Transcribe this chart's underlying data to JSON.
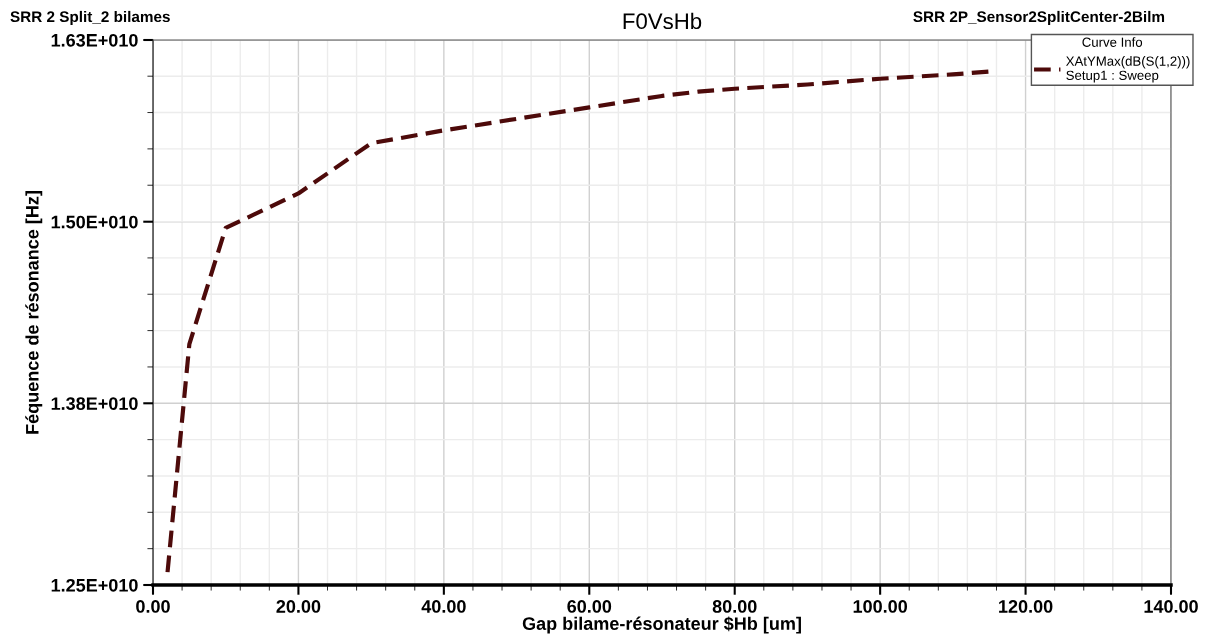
{
  "chart_data": {
    "type": "line",
    "title": "F0VsHb",
    "annotations": [
      "SRR 2 Split_2 bilames",
      "SRR 2P_Sensor2SplitCenter-2Bilm"
    ],
    "xlabel": "Gap bilame-résonateur $Hb [um]",
    "ylabel": "Féquence de résonance [Hz]",
    "legend_title": "Curve Info",
    "x": [
      2,
      5,
      10,
      20,
      30,
      40,
      50,
      60,
      70,
      75,
      80,
      90,
      100,
      110,
      115
    ],
    "series": [
      {
        "name": "XAtYMax(dB(S(1,2)))\nSetup1 : Sweep",
        "color": "#4d0a0a",
        "values": [
          12590000000.0,
          14180000000.0,
          14990000000.0,
          15230000000.0,
          15580000000.0,
          15670000000.0,
          15750000000.0,
          15830000000.0,
          15910000000.0,
          15940000000.0,
          15960000000.0,
          15990000000.0,
          16030000000.0,
          16060000000.0,
          16080000000.0
        ]
      }
    ],
    "xlim": [
      0,
      140
    ],
    "xticks": [
      {
        "value": 0,
        "label": "0.00"
      },
      {
        "value": 20,
        "label": "20.00"
      },
      {
        "value": 40,
        "label": "40.00"
      },
      {
        "value": 60,
        "label": "60.00"
      },
      {
        "value": 80,
        "label": "80.00"
      },
      {
        "value": 100,
        "label": "100.00"
      },
      {
        "value": 120,
        "label": "120.00"
      },
      {
        "value": 140,
        "label": "140.00"
      }
    ],
    "ylim": [
      12500000000.0,
      16300000000.0
    ],
    "yticks": [
      {
        "value": 12500000000.0,
        "label": "1.25E+010"
      },
      {
        "value": 13767000000.0,
        "label": "1.38E+010"
      },
      {
        "value": 15033000000.0,
        "label": "1.50E+010"
      },
      {
        "value": 16300000000.0,
        "label": "1.63E+010"
      }
    ],
    "grid": true,
    "legend": "top right",
    "line_style": "dashed",
    "marker": "none"
  }
}
